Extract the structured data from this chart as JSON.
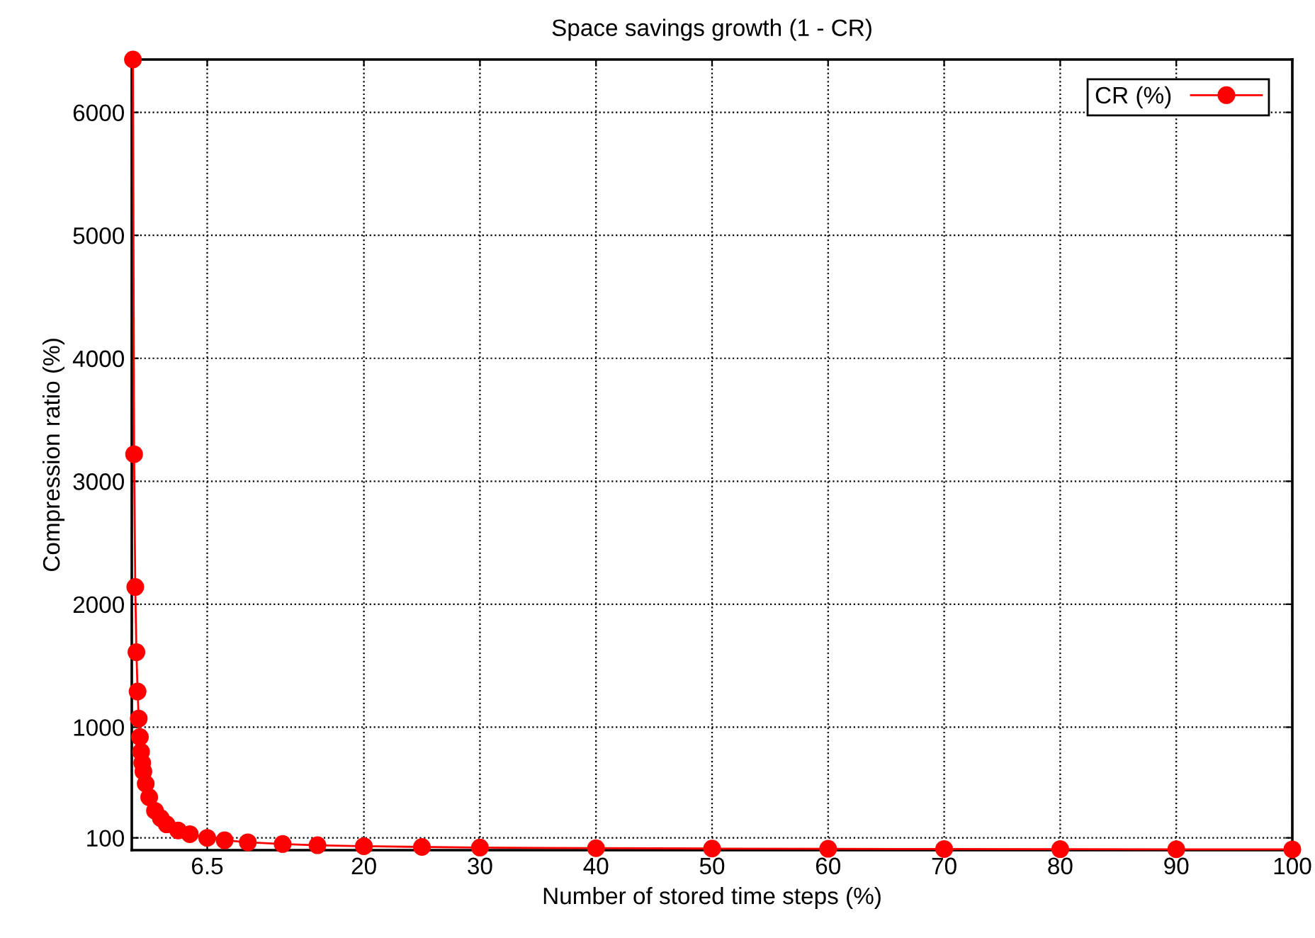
{
  "chart_data": {
    "type": "line",
    "title": "Space savings growth (1 - CR)",
    "xlabel": "Number of stored time steps (%)",
    "ylabel": "Compression ratio (%)",
    "xlim": [
      0,
      100
    ],
    "xticks": [
      6.5,
      20,
      30,
      40,
      50,
      60,
      70,
      80,
      90,
      100
    ],
    "ylim": [
      0,
      6430
    ],
    "yticks": [
      100,
      1000,
      2000,
      3000,
      4000,
      5000,
      6000
    ],
    "grid": true,
    "legend": "top right",
    "marker": "circle",
    "line_style": "solid",
    "series": [
      {
        "name": "CR (%)",
        "color": "#ff0000",
        "x": [
          0.1,
          0.2,
          0.3,
          0.4,
          0.5,
          0.6,
          0.7,
          0.8,
          0.9,
          1.0,
          1.2,
          1.5,
          2,
          2.5,
          3,
          4,
          5,
          6.5,
          8,
          10,
          13,
          16,
          20,
          25,
          30,
          40,
          50,
          60,
          70,
          80,
          90,
          100
        ],
        "values": [
          6430,
          3220,
          2140,
          1610,
          1290,
          1070,
          920,
          800,
          710,
          640,
          540,
          430,
          320,
          260,
          210,
          160,
          130,
          100,
          80,
          64,
          50,
          40,
          32,
          26,
          21,
          16,
          13,
          11,
          9,
          8,
          7,
          6
        ]
      }
    ]
  }
}
